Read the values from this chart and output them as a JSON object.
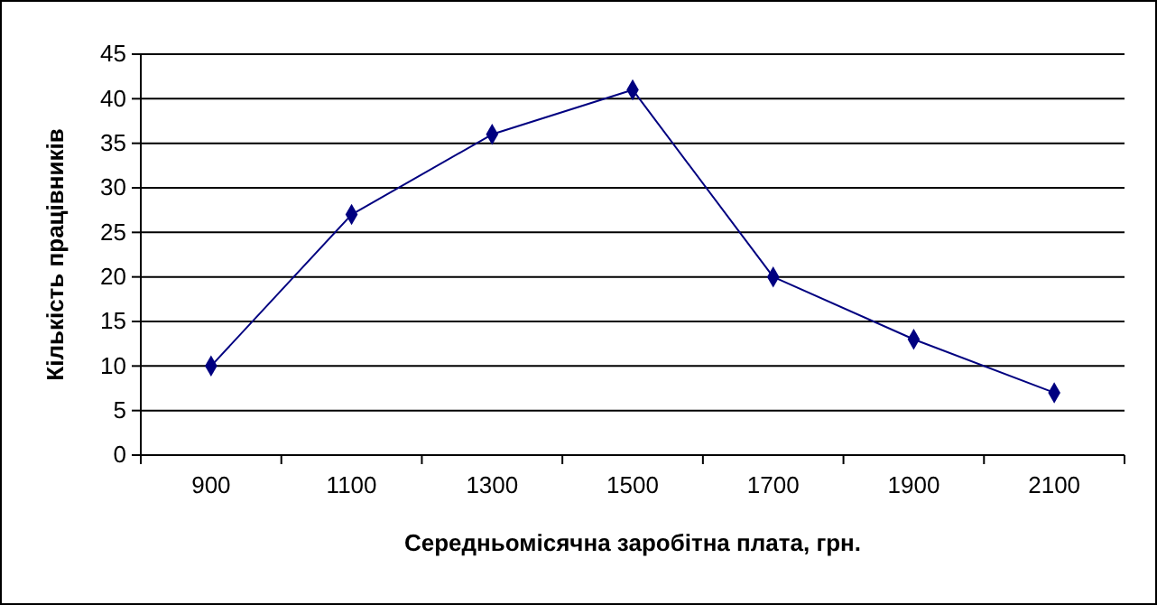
{
  "chart_data": {
    "type": "line",
    "xlabel": "Середньомісячна заробітна плата, грн.",
    "ylabel": "Кількість працівників",
    "categories": [
      "900",
      "1100",
      "1300",
      "1500",
      "1700",
      "1900",
      "2100"
    ],
    "series": [
      {
        "color": "#000080",
        "values": [
          10,
          27,
          36,
          41,
          20,
          13,
          7
        ]
      }
    ],
    "ylim": [
      0,
      45
    ],
    "yticks": [
      0,
      5,
      10,
      15,
      20,
      25,
      30,
      35,
      40,
      45
    ],
    "grid": "y",
    "marker": "diamond",
    "line_style": "solid"
  }
}
